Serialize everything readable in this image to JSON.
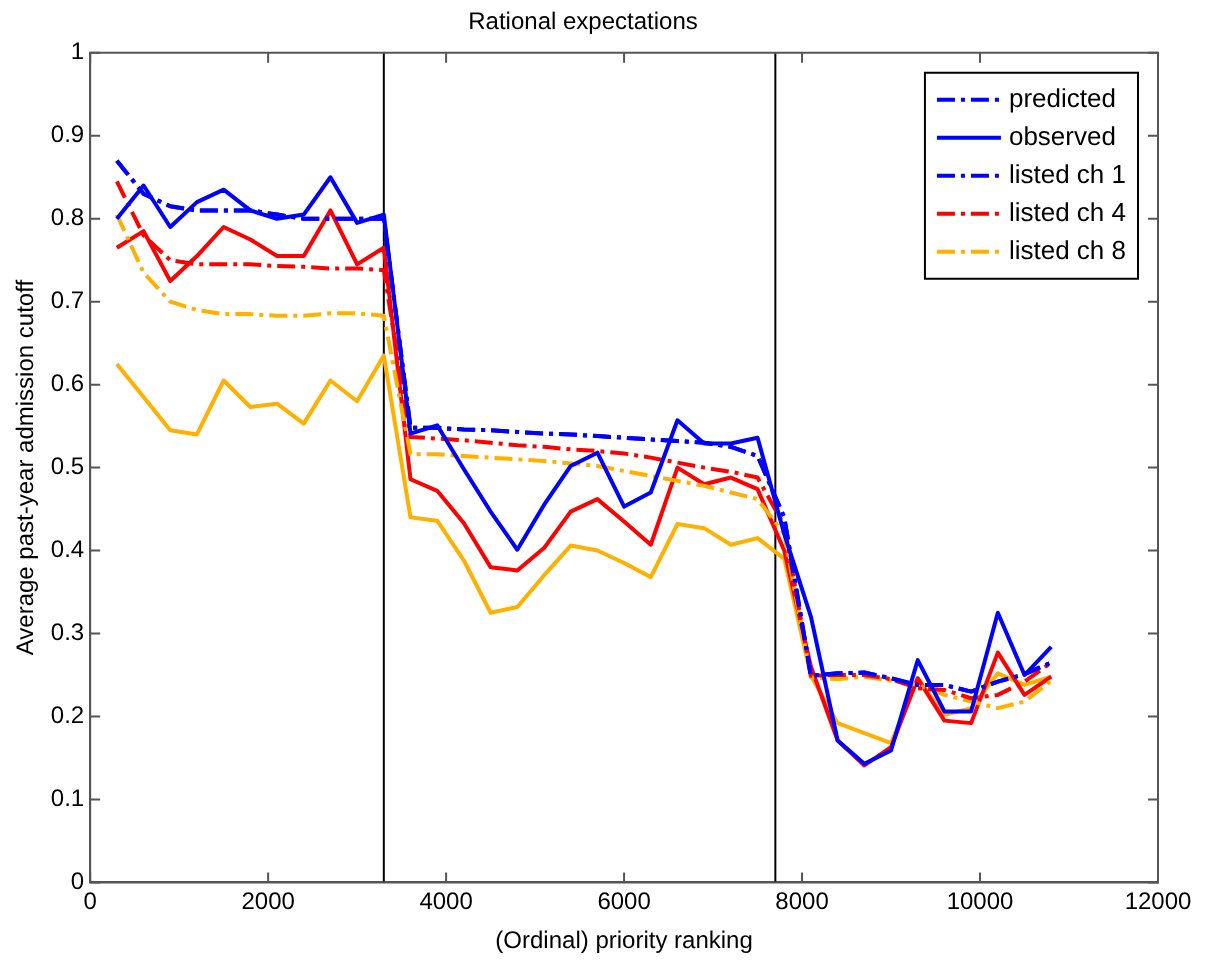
{
  "chart_data": {
    "type": "line",
    "title": "Rational expectations",
    "xlabel": "(Ordinal) priority ranking",
    "ylabel": "Average past-year admission cutoff",
    "x": [
      300,
      600,
      900,
      1200,
      1500,
      1800,
      2100,
      2400,
      2700,
      3000,
      3300,
      3600,
      3900,
      4200,
      4500,
      4800,
      5100,
      5400,
      5700,
      6000,
      6300,
      6600,
      6900,
      7200,
      7500,
      7800,
      8100,
      8400,
      8700,
      9000,
      9300,
      9600,
      9900,
      10200,
      10500,
      10800
    ],
    "xlim": [
      0,
      12000
    ],
    "xticks": [
      0,
      2000,
      4000,
      6000,
      8000,
      10000,
      12000
    ],
    "ylim": [
      0,
      1
    ],
    "yticks": [
      0,
      0.1,
      0.2,
      0.3,
      0.4,
      0.5,
      0.6,
      0.7,
      0.8,
      0.9,
      1
    ],
    "grid": false,
    "legend": "top right",
    "marker": "none",
    "ref_lines": [
      {
        "axis": "x",
        "value": 3300,
        "color": "#000000"
      },
      {
        "axis": "x",
        "value": 7700,
        "color": "#000000"
      }
    ],
    "series": [
      {
        "name": "predicted",
        "color": "#0000ff",
        "line_style": "dashdot",
        "values": [
          0.87,
          0.83,
          0.815,
          0.81,
          0.81,
          0.81,
          0.805,
          0.8,
          0.8,
          0.8,
          0.8,
          0.548,
          0.548,
          0.546,
          0.545,
          0.543,
          0.541,
          0.54,
          0.538,
          0.536,
          0.534,
          0.532,
          0.53,
          0.525,
          0.514,
          0.44,
          0.249,
          0.252,
          0.253,
          0.246,
          0.238,
          0.238,
          0.23,
          0.242,
          0.251,
          0.265
        ]
      },
      {
        "name": "observed",
        "color": "#0000ff",
        "line_style": "solid",
        "values": [
          0.8,
          0.84,
          0.79,
          0.82,
          0.835,
          0.81,
          0.8,
          0.805,
          0.85,
          0.795,
          0.805,
          0.541,
          0.551,
          0.498,
          0.447,
          0.401,
          0.455,
          0.502,
          0.518,
          0.453,
          0.47,
          0.557,
          0.529,
          0.529,
          0.536,
          0.42,
          0.32,
          0.171,
          0.143,
          0.159,
          0.268,
          0.206,
          0.206,
          0.325,
          0.25,
          0.284
        ]
      },
      {
        "name": "listed ch 1",
        "color": "#0000ff",
        "line_style": "dashdot",
        "values": [
          0.87,
          0.83,
          0.815,
          0.81,
          0.81,
          0.81,
          0.805,
          0.8,
          0.8,
          0.8,
          0.8,
          0.548,
          0.548,
          0.546,
          0.545,
          0.543,
          0.541,
          0.54,
          0.538,
          0.536,
          0.534,
          0.532,
          0.53,
          0.525,
          0.514,
          0.44,
          0.249,
          0.252,
          0.253,
          0.246,
          0.238,
          0.238,
          0.23,
          0.242,
          0.251,
          0.265
        ]
      },
      {
        "name": "listed ch 4",
        "color": "#ff0000",
        "line_style": "dashdot",
        "values": [
          0.845,
          0.78,
          0.75,
          0.745,
          0.745,
          0.745,
          0.743,
          0.742,
          0.74,
          0.74,
          0.738,
          0.537,
          0.535,
          0.533,
          0.53,
          0.527,
          0.525,
          0.522,
          0.52,
          0.517,
          0.512,
          0.506,
          0.5,
          0.495,
          0.488,
          0.43,
          0.249,
          0.25,
          0.25,
          0.245,
          0.234,
          0.232,
          0.222,
          0.226,
          0.242,
          0.265
        ]
      },
      {
        "name": "listed ch 8",
        "color": "#ffb000",
        "line_style": "dashdot",
        "values": [
          0.805,
          0.735,
          0.7,
          0.69,
          0.685,
          0.685,
          0.683,
          0.683,
          0.686,
          0.686,
          0.683,
          0.516,
          0.516,
          0.514,
          0.512,
          0.51,
          0.508,
          0.505,
          0.502,
          0.496,
          0.49,
          0.484,
          0.478,
          0.47,
          0.462,
          0.42,
          0.247,
          0.245,
          0.248,
          0.243,
          0.238,
          0.226,
          0.218,
          0.21,
          0.218,
          0.243
        ]
      },
      {
        "color": "#ff0000",
        "line_style": "solid",
        "values": [
          0.765,
          0.785,
          0.725,
          0.755,
          0.79,
          0.775,
          0.755,
          0.755,
          0.81,
          0.745,
          0.765,
          0.486,
          0.472,
          0.433,
          0.38,
          0.376,
          0.403,
          0.447,
          0.462,
          0.435,
          0.407,
          0.5,
          0.48,
          0.488,
          0.474,
          0.4,
          0.26,
          0.171,
          0.141,
          0.163,
          0.246,
          0.195,
          0.192,
          0.277,
          0.226,
          0.248
        ]
      },
      {
        "color": "#ffb000",
        "line_style": "solid",
        "values": [
          0.625,
          0.585,
          0.545,
          0.54,
          0.605,
          0.573,
          0.577,
          0.553,
          0.605,
          0.58,
          0.635,
          0.44,
          0.436,
          0.388,
          0.325,
          0.332,
          0.37,
          0.406,
          0.4,
          0.385,
          0.368,
          0.432,
          0.427,
          0.407,
          0.415,
          0.39,
          0.249,
          0.192,
          0.18,
          0.168,
          0.246,
          0.202,
          0.21,
          0.252,
          0.238,
          0.248
        ]
      }
    ]
  }
}
